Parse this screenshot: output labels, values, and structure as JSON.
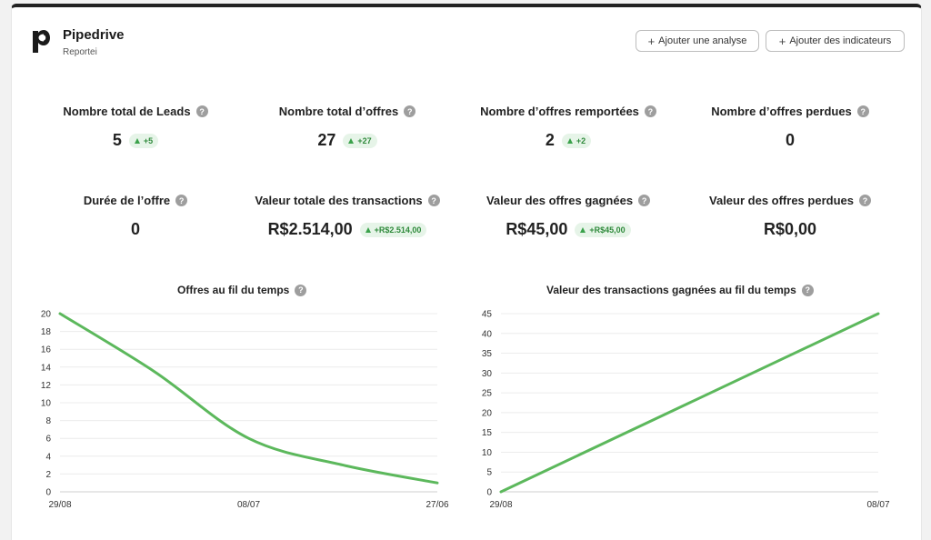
{
  "header": {
    "app_name": "Pipedrive",
    "subtitle": "Reportei",
    "logo_icon": "pipedrive-logo-icon",
    "buttons": {
      "add_analysis": "Ajouter une analyse",
      "add_indicators": "Ajouter des indicateurs"
    }
  },
  "kpis": [
    {
      "title": "Nombre total de Leads",
      "value": "5",
      "delta": "+5"
    },
    {
      "title": "Nombre total d’offres",
      "value": "27",
      "delta": "+27"
    },
    {
      "title": "Nombre d’offres remportées",
      "value": "2",
      "delta": "+2"
    },
    {
      "title": "Nombre d’offres perdues",
      "value": "0",
      "delta": ""
    },
    {
      "title": "Durée de l’offre",
      "value": "0",
      "delta": ""
    },
    {
      "title": "Valeur totale des transactions",
      "value": "R$2.514,00",
      "delta": "+R$2.514,00"
    },
    {
      "title": "Valeur des offres gagnées",
      "value": "R$45,00",
      "delta": "+R$45,00"
    },
    {
      "title": "Valeur des offres perdues",
      "value": "R$0,00",
      "delta": ""
    }
  ],
  "colors": {
    "line": "#5cb85c",
    "delta_bg": "#e6f4e8",
    "delta_text": "#2f8a3b",
    "help_icon": "#9e9e9e"
  },
  "chart_data": [
    {
      "type": "line",
      "title": "Offres au fil du temps",
      "x": [
        "29/08",
        "08/07",
        "27/06"
      ],
      "y_ticks": [
        0,
        2,
        4,
        6,
        8,
        10,
        12,
        14,
        16,
        18,
        20
      ],
      "ylim": [
        0,
        20
      ],
      "series": [
        {
          "points": [
            [
              0,
              20
            ],
            [
              0.25,
              13.5
            ],
            [
              0.5,
              6
            ],
            [
              0.75,
              3
            ],
            [
              1,
              1
            ]
          ]
        }
      ],
      "grid": true
    },
    {
      "type": "line",
      "title": "Valeur des transactions gagnées au fil du temps",
      "x": [
        "29/08",
        "08/07"
      ],
      "y_ticks": [
        0,
        5,
        10,
        15,
        20,
        25,
        30,
        35,
        40,
        45
      ],
      "ylim": [
        0,
        45
      ],
      "series": [
        {
          "points": [
            [
              0,
              0
            ],
            [
              1,
              45
            ]
          ]
        }
      ],
      "grid": true
    }
  ]
}
